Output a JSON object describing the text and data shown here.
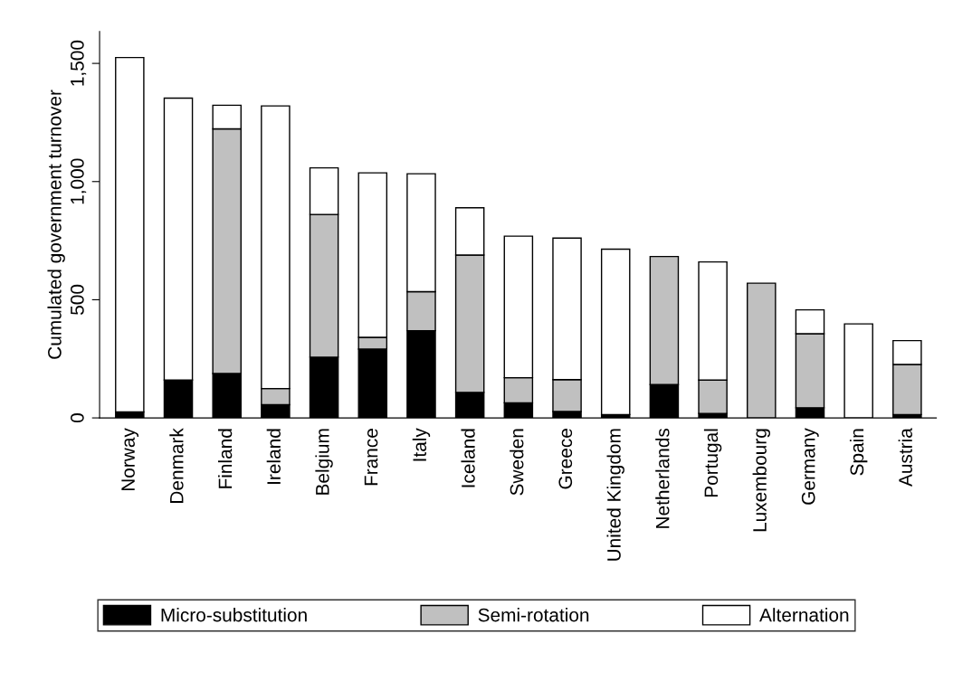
{
  "chart_data": {
    "type": "bar",
    "stacked": true,
    "ylabel": "Cumulated government turnover",
    "categories": [
      "Norway",
      "Denmark",
      "Finland",
      "Ireland",
      "Belgium",
      "France",
      "Italy",
      "Iceland",
      "Sweden",
      "Greece",
      "United Kingdom",
      "Netherlands",
      "Portugal",
      "Luxembourg",
      "Germany",
      "Spain",
      "Austria"
    ],
    "series": [
      {
        "name": "Micro-substitution",
        "color": "#000000",
        "values": [
          25,
          160,
          188,
          56,
          257,
          291,
          369,
          108,
          64,
          27,
          14,
          141,
          19,
          null,
          43,
          null,
          14
        ]
      },
      {
        "name": "Semi-rotation",
        "color": "#c0c0c0",
        "values": [
          null,
          null,
          1035,
          68,
          604,
          50,
          165,
          581,
          106,
          135,
          null,
          542,
          141,
          570,
          313,
          null,
          212
        ]
      },
      {
        "name": "Alternation",
        "color": "#ffffff",
        "values": [
          1500,
          1193,
          100,
          1196,
          197,
          696,
          499,
          200,
          599,
          599,
          700,
          null,
          500,
          null,
          101,
          398,
          101
        ]
      }
    ],
    "ylim": [
      0,
      1635
    ],
    "yticks": [
      0,
      500,
      {
        "value": 1000,
        "label": "1,000"
      },
      {
        "value": 1500,
        "label": "1,500"
      }
    ],
    "grid": false,
    "legend": "bottom"
  }
}
